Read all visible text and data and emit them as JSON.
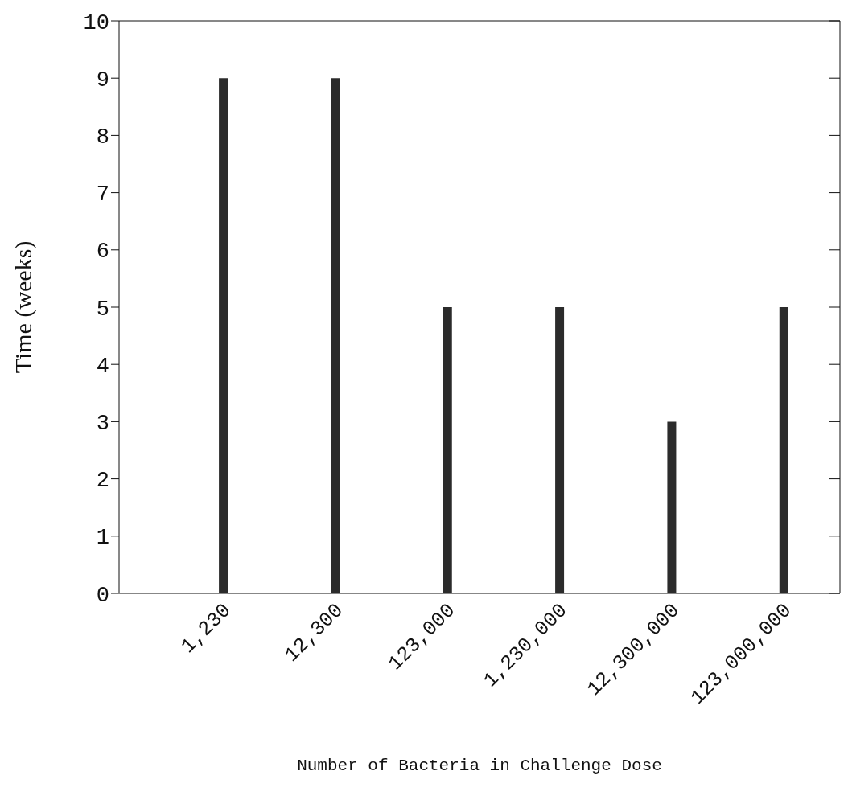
{
  "chart_data": {
    "type": "bar",
    "xlabel": "Number of Bacteria in Challenge Dose",
    "ylabel": "Time (weeks)",
    "categories": [
      "1,230",
      "12,300",
      "123,000",
      "1,230,000",
      "12,300,000",
      "123,000,000"
    ],
    "values": [
      9,
      9,
      5,
      5,
      3,
      5
    ],
    "color": "#2b2b2b",
    "ylim": [
      0,
      10
    ],
    "yticks": [
      0,
      1,
      2,
      3,
      4,
      5,
      6,
      7,
      8,
      9,
      10
    ],
    "grid": false,
    "legend": false
  }
}
